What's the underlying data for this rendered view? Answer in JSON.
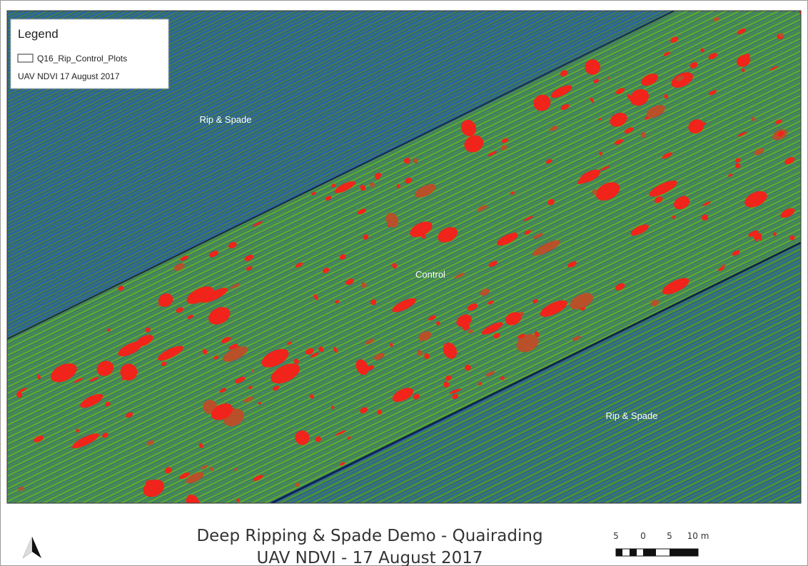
{
  "legend": {
    "title": "Legend",
    "items": [
      "Q16_Rip_Control_Plots",
      "UAV NDVI 17 August 2017"
    ]
  },
  "map_labels": [
    "Rip & Spade",
    "Control",
    "Rip & Spade"
  ],
  "title": [
    "Deep Ripping & Spade Demo - Quairading",
    "UAV NDVI - 17 August 2017"
  ],
  "scale_bar": {
    "labels": [
      "5",
      "0",
      "5",
      "10 m"
    ]
  }
}
